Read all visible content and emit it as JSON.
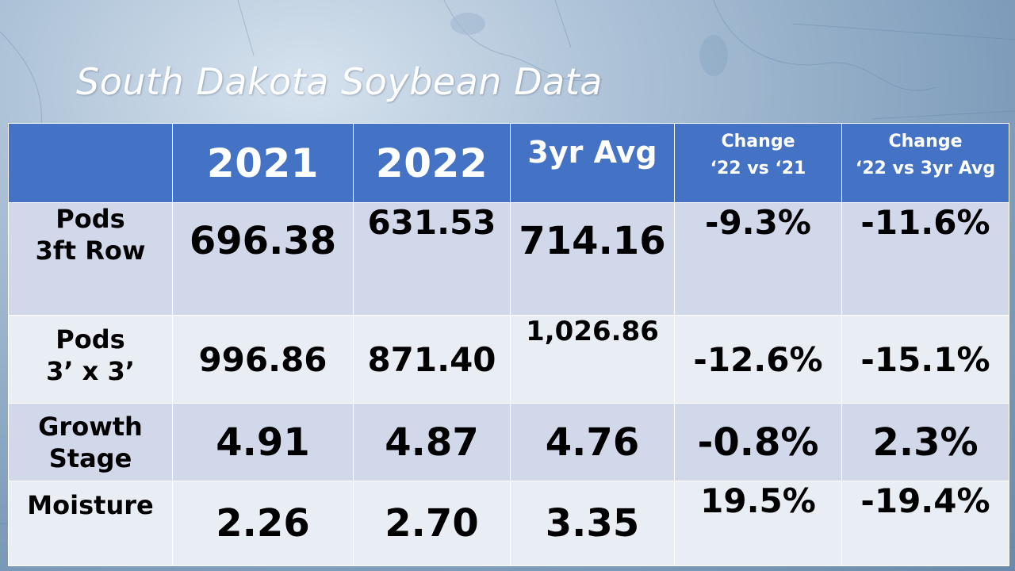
{
  "title": "South Dakota Soybean Data",
  "colors": {
    "header_bg": "#4472c4",
    "row_odd_bg": "#d0d8ea",
    "row_even_bg": "#e9edf4",
    "title_color": "#ffffff"
  },
  "columns": [
    {
      "lines": [
        ""
      ]
    },
    {
      "lines": [
        "2021"
      ]
    },
    {
      "lines": [
        "2022"
      ]
    },
    {
      "lines": [
        "3yr Avg"
      ]
    },
    {
      "lines": [
        "Change",
        "‘22 vs ‘21"
      ]
    },
    {
      "lines": [
        "Change",
        "‘22 vs 3yr Avg"
      ]
    }
  ],
  "rows": [
    {
      "label_lines": [
        "Pods",
        "3ft Row"
      ],
      "y2021": "696.38",
      "y2022": "631.53",
      "avg3yr": "714.16",
      "change_22_vs_21": "-9.3%",
      "change_22_vs_avg": "-11.6%"
    },
    {
      "label_lines": [
        "Pods",
        "3’ x 3’"
      ],
      "y2021": "996.86",
      "y2022": "871.40",
      "avg3yr": "1,026.86",
      "change_22_vs_21": "-12.6%",
      "change_22_vs_avg": "-15.1%"
    },
    {
      "label_lines": [
        "Growth",
        "Stage"
      ],
      "y2021": "4.91",
      "y2022": "4.87",
      "avg3yr": "4.76",
      "change_22_vs_21": "-0.8%",
      "change_22_vs_avg": "2.3%"
    },
    {
      "label_lines": [
        "Moisture"
      ],
      "y2021": "2.26",
      "y2022": "2.70",
      "avg3yr": "3.35",
      "change_22_vs_21": "19.5%",
      "change_22_vs_avg": "-19.4%"
    }
  ]
}
